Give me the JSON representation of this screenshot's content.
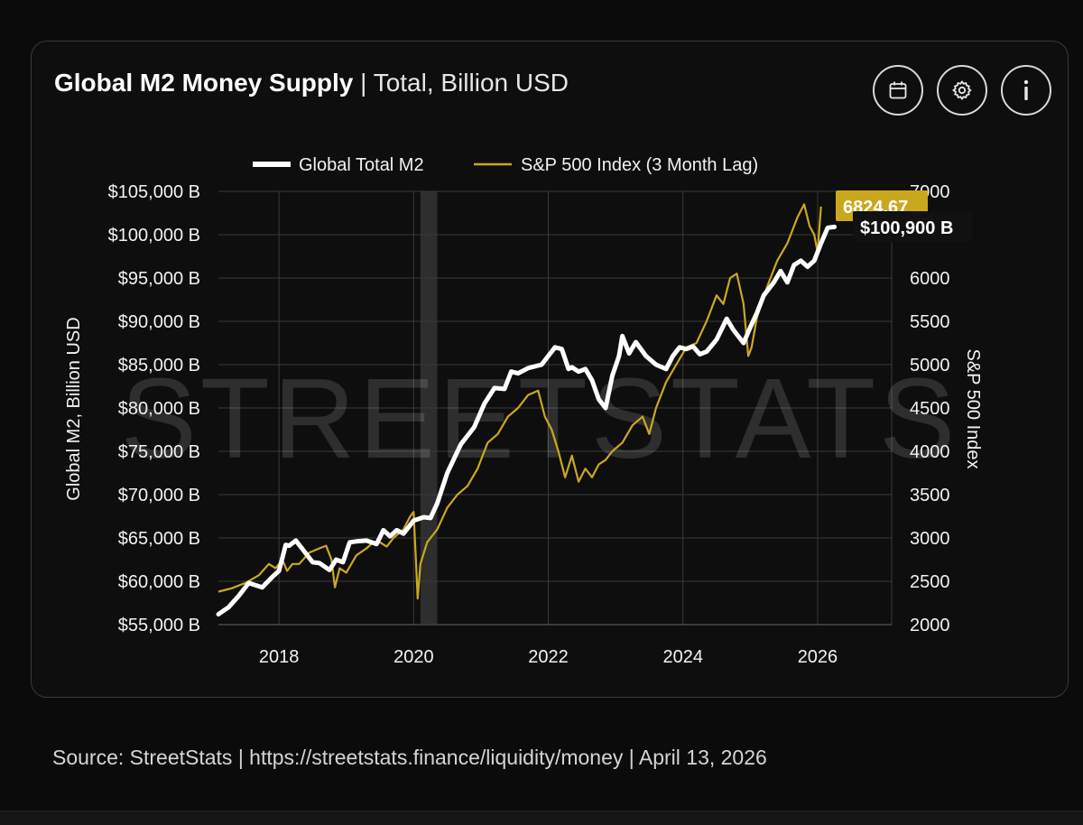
{
  "header": {
    "title_bold": "Global M2 Money Supply",
    "title_rest": "| Total, Billion USD",
    "buttons": [
      {
        "name": "calendar-button",
        "icon": "calendar-icon"
      },
      {
        "name": "settings-button",
        "icon": "gear-icon"
      },
      {
        "name": "info-button",
        "icon": "info-icon"
      }
    ]
  },
  "footer": {
    "source": "Source:  StreetStats  |  https://streetstats.finance/liquidity/money  |  April 13, 2026"
  },
  "watermark": "STREETSTATS",
  "colors": {
    "m2": "#ffffff",
    "spx": "#c9a820",
    "spx_badge": "#c9a820",
    "recession_band": "#3a3a3a",
    "grid": "#3a3a3a"
  },
  "chart_data": {
    "type": "line",
    "legend": [
      "Global Total M2",
      "S&P 500 Index (3 Month Lag)"
    ],
    "legend_position": "top-center",
    "grid": true,
    "xaxis": {
      "ticks": [
        "2018",
        "2020",
        "2022",
        "2024",
        "2026"
      ],
      "range": [
        2017.1,
        2027.1
      ]
    },
    "yaxis_left": {
      "label": "Global M2, Billion USD",
      "ticks": [
        "$55,000 B",
        "$60,000 B",
        "$65,000 B",
        "$70,000 B",
        "$75,000 B",
        "$80,000 B",
        "$85,000 B",
        "$90,000 B",
        "$95,000 B",
        "$100,000 B",
        "$105,000 B"
      ],
      "range": [
        55000,
        105000
      ]
    },
    "yaxis_right": {
      "label": "S&P 500 Index",
      "ticks": [
        "2000",
        "2500",
        "3000",
        "3500",
        "4000",
        "4500",
        "5000",
        "5500",
        "6000",
        "6500",
        "7000"
      ],
      "range": [
        2000,
        7000
      ]
    },
    "shaded_band": [
      2020.1,
      2020.35
    ],
    "last_values": {
      "m2": "$100,900 B",
      "spx": "6824.67"
    },
    "series": [
      {
        "name": "Global Total M2",
        "axis": "left",
        "x": [
          2017.1,
          2017.25,
          2017.4,
          2017.55,
          2017.75,
          2017.9,
          2018.0,
          2018.1,
          2018.15,
          2018.25,
          2018.35,
          2018.5,
          2018.6,
          2018.75,
          2018.85,
          2018.95,
          2019.05,
          2019.15,
          2019.3,
          2019.45,
          2019.55,
          2019.65,
          2019.75,
          2019.85,
          2020.0,
          2020.15,
          2020.25,
          2020.35,
          2020.5,
          2020.7,
          2020.9,
          2021.05,
          2021.2,
          2021.35,
          2021.45,
          2021.55,
          2021.7,
          2021.9,
          2022.0,
          2022.1,
          2022.2,
          2022.3,
          2022.35,
          2022.45,
          2022.55,
          2022.65,
          2022.75,
          2022.85,
          2022.95,
          2023.05,
          2023.1,
          2023.2,
          2023.3,
          2023.45,
          2023.6,
          2023.75,
          2023.85,
          2023.95,
          2024.05,
          2024.15,
          2024.25,
          2024.35,
          2024.5,
          2024.65,
          2024.75,
          2024.9,
          2025.0,
          2025.1,
          2025.2,
          2025.35,
          2025.45,
          2025.55,
          2025.65,
          2025.75,
          2025.85,
          2025.95,
          2026.05,
          2026.15,
          2026.25
        ],
        "values": [
          56200,
          57000,
          58300,
          59800,
          59300,
          60500,
          61200,
          64200,
          64100,
          64700,
          63700,
          62200,
          62100,
          61300,
          62500,
          62200,
          64500,
          64600,
          64700,
          64300,
          65900,
          65200,
          65900,
          65500,
          67000,
          67400,
          67300,
          69000,
          72500,
          75800,
          77800,
          80500,
          82300,
          82200,
          84200,
          84000,
          84600,
          85000,
          86000,
          87000,
          86800,
          84500,
          84700,
          84200,
          84500,
          83200,
          81000,
          80000,
          83700,
          86000,
          88300,
          86300,
          87600,
          86000,
          85000,
          84500,
          86000,
          87000,
          86800,
          87100,
          86200,
          86500,
          87900,
          90300,
          89000,
          87500,
          89300,
          91000,
          93000,
          94500,
          95800,
          94500,
          96500,
          97000,
          96300,
          97000,
          99000,
          100800,
          100900
        ]
      },
      {
        "name": "S&P 500 Index (3 Month Lag)",
        "axis": "right",
        "x": [
          2017.1,
          2017.3,
          2017.5,
          2017.7,
          2017.85,
          2017.95,
          2018.05,
          2018.12,
          2018.2,
          2018.3,
          2018.45,
          2018.6,
          2018.7,
          2018.78,
          2018.83,
          2018.9,
          2019.0,
          2019.15,
          2019.3,
          2019.4,
          2019.5,
          2019.6,
          2019.7,
          2019.85,
          2019.95,
          2020.0,
          2020.03,
          2020.06,
          2020.1,
          2020.2,
          2020.35,
          2020.5,
          2020.65,
          2020.8,
          2020.95,
          2021.1,
          2021.25,
          2021.4,
          2021.55,
          2021.7,
          2021.85,
          2021.95,
          2022.05,
          2022.15,
          2022.25,
          2022.35,
          2022.45,
          2022.55,
          2022.65,
          2022.75,
          2022.85,
          2022.95,
          2023.1,
          2023.25,
          2023.4,
          2023.5,
          2023.6,
          2023.75,
          2023.9,
          2024.05,
          2024.2,
          2024.35,
          2024.5,
          2024.6,
          2024.7,
          2024.8,
          2024.9,
          2024.97,
          2025.02,
          2025.1,
          2025.25,
          2025.4,
          2025.55,
          2025.7,
          2025.8,
          2025.88,
          2025.95,
          2026.0,
          2026.05
        ],
        "values": [
          2380,
          2420,
          2480,
          2570,
          2700,
          2650,
          2750,
          2620,
          2700,
          2700,
          2830,
          2880,
          2910,
          2750,
          2430,
          2650,
          2600,
          2800,
          2880,
          2950,
          2950,
          2900,
          3000,
          3100,
          3250,
          3300,
          2800,
          2300,
          2700,
          2950,
          3100,
          3350,
          3500,
          3600,
          3800,
          4100,
          4200,
          4400,
          4500,
          4650,
          4700,
          4400,
          4250,
          4000,
          3700,
          3950,
          3650,
          3800,
          3700,
          3850,
          3900,
          4000,
          4100,
          4300,
          4400,
          4200,
          4500,
          4800,
          5000,
          5200,
          5250,
          5500,
          5800,
          5700,
          6000,
          6050,
          5700,
          5100,
          5200,
          5550,
          5900,
          6200,
          6400,
          6700,
          6850,
          6600,
          6500,
          6300,
          6824.67
        ]
      }
    ]
  }
}
